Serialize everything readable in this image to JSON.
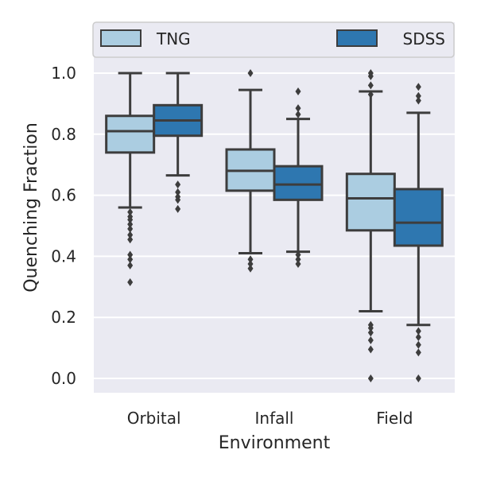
{
  "chart_data": {
    "type": "box",
    "xlabel": "Environment",
    "ylabel": "Quenching Fraction",
    "categories": [
      "Orbital",
      "Infall",
      "Field"
    ],
    "ylim": [
      -0.045,
      1.045
    ],
    "yticks": [
      0.0,
      0.2,
      0.4,
      0.6,
      0.8,
      1.0
    ],
    "ytick_labels": [
      "0.0",
      "0.2",
      "0.4",
      "0.6",
      "0.8",
      "1.0"
    ],
    "grid": true,
    "legend_position": "top",
    "series": [
      {
        "name": "TNG",
        "color": "#abcde1",
        "boxes": [
          {
            "q1": 0.74,
            "median": 0.81,
            "q3": 0.86,
            "whisker_low": 0.56,
            "whisker_high": 1.0,
            "outliers": [
              0.545,
              0.53,
              0.52,
              0.505,
              0.49,
              0.47,
              0.455,
              0.405,
              0.39,
              0.37,
              0.315
            ]
          },
          {
            "q1": 0.615,
            "median": 0.68,
            "q3": 0.75,
            "whisker_low": 0.41,
            "whisker_high": 0.945,
            "outliers": [
              1.0,
              0.39,
              0.375,
              0.36
            ]
          },
          {
            "q1": 0.485,
            "median": 0.59,
            "q3": 0.67,
            "whisker_low": 0.22,
            "whisker_high": 0.94,
            "outliers": [
              1.0,
              0.99,
              0.96,
              0.93,
              0.175,
              0.165,
              0.15,
              0.125,
              0.095,
              0.0
            ]
          }
        ]
      },
      {
        "name": "SDSS",
        "color": "#2e77b0",
        "boxes": [
          {
            "q1": 0.795,
            "median": 0.845,
            "q3": 0.895,
            "whisker_low": 0.665,
            "whisker_high": 1.0,
            "outliers": [
              0.635,
              0.61,
              0.595,
              0.585,
              0.555
            ]
          },
          {
            "q1": 0.585,
            "median": 0.635,
            "q3": 0.695,
            "whisker_low": 0.415,
            "whisker_high": 0.85,
            "outliers": [
              0.94,
              0.885,
              0.865,
              0.405,
              0.39,
              0.375
            ]
          },
          {
            "q1": 0.435,
            "median": 0.51,
            "q3": 0.62,
            "whisker_low": 0.175,
            "whisker_high": 0.87,
            "outliers": [
              0.955,
              0.925,
              0.91,
              0.155,
              0.135,
              0.11,
              0.085,
              0.0
            ]
          }
        ]
      }
    ]
  }
}
